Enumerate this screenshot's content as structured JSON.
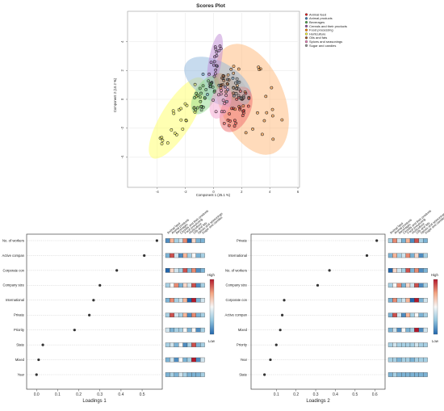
{
  "chart_data": [
    {
      "type": "scatter",
      "title": "Scores Plot",
      "xlabel": "Component 1 (25.1 %)",
      "ylabel": "Component 2 (10.2 %)",
      "xlim": [
        -6,
        6
      ],
      "ylim": [
        -6,
        6
      ],
      "x_ticks": [
        "-4",
        "-2",
        "0",
        "2",
        "4",
        "6"
      ],
      "y_ticks": [
        "4",
        "2",
        "0",
        "-2",
        "-4"
      ],
      "grid": true,
      "legend_position": "top-right",
      "series": [
        {
          "name": "Animal feed",
          "color": "#e41a1c"
        },
        {
          "name": "Animal products",
          "color": "#377eb8"
        },
        {
          "name": "Beverages",
          "color": "#4daf4a"
        },
        {
          "name": "Cereals and their products",
          "color": "#984ea3"
        },
        {
          "name": "Food processing",
          "color": "#ff7f00"
        },
        {
          "name": "Horticulture",
          "color": "#ffff33"
        },
        {
          "name": "Oils and fats",
          "color": "#a65628"
        },
        {
          "name": "Spices and seasonings",
          "color": "#f781bf"
        },
        {
          "name": "Sugar and candies",
          "color": "#999999"
        }
      ],
      "ellipses": [
        {
          "series": "Horticulture",
          "cx": -2.6,
          "cy": -1.3,
          "rx": 3.3,
          "ry": 1.1,
          "angle_deg": 58,
          "color": "#ffff66"
        },
        {
          "series": "Food processing",
          "cx": 2.7,
          "cy": 0.0,
          "rx": 4.1,
          "ry": 2.3,
          "angle_deg": -68,
          "color": "#ffb877"
        },
        {
          "series": "Animal products",
          "cx": 0.3,
          "cy": 1.2,
          "rx": 2.6,
          "ry": 1.4,
          "angle_deg": -30,
          "color": "#8fb8dd"
        },
        {
          "series": "Cereals and their products",
          "cx": 0.1,
          "cy": 2.6,
          "rx": 2.0,
          "ry": 0.45,
          "angle_deg": 80,
          "color": "#c08ad6"
        },
        {
          "series": "Beverages",
          "cx": -0.6,
          "cy": 0.3,
          "rx": 1.5,
          "ry": 0.75,
          "angle_deg": 60,
          "color": "#8fd98c"
        },
        {
          "series": "Animal feed",
          "cx": 1.6,
          "cy": -0.7,
          "rx": 1.7,
          "ry": 1.0,
          "angle_deg": 65,
          "color": "#f06a6a"
        },
        {
          "series": "Oils and fats",
          "cx": 0.9,
          "cy": 0.9,
          "rx": 1.1,
          "ry": 0.6,
          "angle_deg": -50,
          "color": "#c49a7c"
        },
        {
          "series": "Spices and seasonings",
          "cx": 0.5,
          "cy": -0.2,
          "rx": 1.2,
          "ry": 0.7,
          "angle_deg": 70,
          "color": "#f5a3cf"
        },
        {
          "series": "Sugar and candies",
          "cx": 1.8,
          "cy": 0.7,
          "rx": 1.2,
          "ry": 0.5,
          "angle_deg": -60,
          "color": "#bbbbbb"
        }
      ]
    },
    {
      "type": "scatter",
      "subtype": "loadings_dotplot",
      "xlabel": "Loadings 1",
      "xlim": [
        -0.02,
        0.58
      ],
      "x_ticks": [
        "0.0",
        "0.1",
        "0.2",
        "0.3",
        "0.4",
        "0.5"
      ],
      "variables": [
        "No. of workers",
        "Active compan",
        "Corporate con",
        "Company size",
        "International",
        "Private",
        "Priority",
        "State",
        "Mixed",
        "Year"
      ],
      "values": [
        0.57,
        0.51,
        0.38,
        0.3,
        0.27,
        0.25,
        0.18,
        0.03,
        0.01,
        0.0
      ],
      "heatmap_columns": [
        "Animal feed",
        "Animal products",
        "Beverages",
        "Cereals and their products",
        "Food processing",
        "Horticulture",
        "Oils and fats",
        "Spices and seasonings",
        "Sugar and candies"
      ],
      "heatmap": [
        [
          0.1,
          0.7,
          0.3,
          0.4,
          0.8,
          0.0,
          0.6,
          0.2,
          0.2
        ],
        [
          0.2,
          0.9,
          0.4,
          0.1,
          0.7,
          0.3,
          0.5,
          0.2,
          0.3
        ],
        [
          0.0,
          0.6,
          0.4,
          0.3,
          0.9,
          0.2,
          0.8,
          0.1,
          0.2
        ],
        [
          0.3,
          0.5,
          0.8,
          0.2,
          0.6,
          0.4,
          0.9,
          0.1,
          0.3
        ],
        [
          0.2,
          0.8,
          0.3,
          0.4,
          0.7,
          0.0,
          1.0,
          0.2,
          0.4
        ],
        [
          0.3,
          0.9,
          0.4,
          0.3,
          0.7,
          0.1,
          0.8,
          0.2,
          0.3
        ],
        [
          0.4,
          0.2,
          0.3,
          0.3,
          0.5,
          0.2,
          0.5,
          0.1,
          0.3
        ],
        [
          0.3,
          0.4,
          0.2,
          0.5,
          0.1,
          0.3,
          0.9,
          0.2,
          0.3
        ],
        [
          0.2,
          0.4,
          0.1,
          0.5,
          0.2,
          0.3,
          1.0,
          0.1,
          0.4
        ],
        [
          0.2,
          0.3,
          0.2,
          0.4,
          0.3,
          0.2,
          0.2,
          0.2,
          0.3
        ]
      ],
      "colorbar": {
        "high_label": "High",
        "low_label": "Low"
      }
    },
    {
      "type": "scatter",
      "subtype": "loadings_dotplot",
      "xlabel": "Loadings 2",
      "xlim": [
        -0.02,
        0.64
      ],
      "x_ticks": [
        "0.1",
        "0.2",
        "0.3",
        "0.4",
        "0.5",
        "0.6"
      ],
      "variables": [
        "Private",
        "International",
        "No. of workers",
        "Company size",
        "Corporate con",
        "Active compan",
        "Mixed",
        "Priority",
        "Year",
        "State"
      ],
      "values": [
        0.61,
        0.56,
        0.37,
        0.31,
        0.14,
        0.13,
        0.12,
        0.1,
        0.07,
        0.04
      ],
      "heatmap_columns": [
        "Animal feed",
        "Animal products",
        "Beverages",
        "Cereals and their products",
        "Food processing",
        "Horticulture",
        "Oils and fats",
        "Spices and seasonings",
        "Sugar and candies"
      ],
      "heatmap": [
        [
          0.3,
          0.8,
          0.4,
          0.2,
          0.7,
          0.1,
          0.9,
          0.3,
          0.2
        ],
        [
          0.2,
          0.7,
          0.3,
          0.4,
          0.8,
          0.2,
          0.6,
          0.1,
          0.3
        ],
        [
          0.0,
          0.6,
          0.4,
          0.3,
          0.9,
          0.2,
          0.8,
          0.1,
          0.2
        ],
        [
          0.3,
          0.5,
          0.8,
          0.2,
          0.6,
          0.4,
          0.9,
          0.1,
          0.3
        ],
        [
          0.2,
          0.8,
          0.3,
          0.4,
          0.7,
          0.0,
          1.0,
          0.2,
          0.4
        ],
        [
          0.2,
          0.9,
          0.4,
          0.1,
          0.7,
          0.3,
          0.5,
          0.2,
          0.3
        ],
        [
          0.2,
          0.4,
          0.1,
          0.5,
          0.2,
          0.3,
          1.0,
          0.1,
          0.4
        ],
        [
          0.3,
          0.4,
          0.3,
          0.3,
          0.3,
          0.3,
          0.4,
          0.3,
          0.3
        ],
        [
          0.3,
          0.3,
          0.2,
          0.3,
          0.3,
          0.2,
          0.3,
          0.3,
          0.3
        ],
        [
          0.2,
          0.3,
          0.2,
          0.2,
          0.2,
          0.2,
          0.2,
          0.2,
          0.2
        ]
      ],
      "colorbar": {
        "high_label": "High",
        "low_label": "Low"
      }
    }
  ]
}
